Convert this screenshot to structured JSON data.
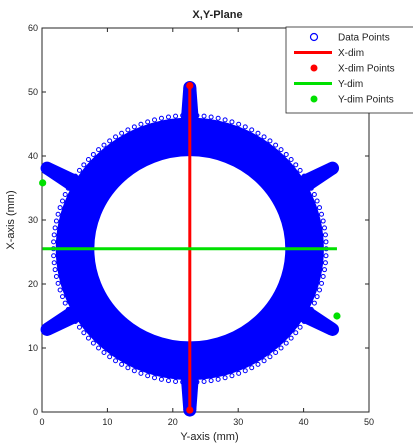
{
  "chart_data": {
    "type": "scatter",
    "title": "X,Y-Plane",
    "xlabel": "Y-axis (mm)",
    "ylabel": "X-axis (mm)",
    "xlim": [
      0,
      50
    ],
    "ylim": [
      0,
      60
    ],
    "xticks": [
      0,
      10,
      20,
      30,
      40,
      50
    ],
    "yticks": [
      0,
      10,
      20,
      30,
      40,
      50,
      60
    ],
    "grid": false,
    "legend_position": "top-right",
    "shape": {
      "description": "gear-shaped ring with six spokes",
      "center": [
        22.6,
        25.5
      ],
      "inner_radius": 14.6,
      "outer_radius": 20.5,
      "spoke_angles_deg": [
        90,
        30,
        -30,
        -90,
        -150,
        150
      ],
      "spoke_tip_radius": 25.2
    },
    "series": [
      {
        "name": "Data Points",
        "marker": "open-circle",
        "color": "#0000ff",
        "description": "dense point cloud filling the gear shape"
      },
      {
        "name": "X-dim",
        "type": "line",
        "color": "#ff0000",
        "x": [
          22.6,
          22.6
        ],
        "y": [
          0.3,
          51.0
        ]
      },
      {
        "name": "X-dim Points",
        "marker": "filled-circle",
        "color": "#ff0000",
        "x": [
          22.6,
          22.6
        ],
        "y": [
          0.3,
          51.0
        ]
      },
      {
        "name": "Y-dim",
        "type": "line",
        "color": "#00e000",
        "x": [
          0.1,
          45.1
        ],
        "y": [
          25.5,
          25.5
        ]
      },
      {
        "name": "Y-dim Points",
        "marker": "filled-circle",
        "color": "#00e000",
        "x": [
          0.1,
          45.1
        ],
        "y": [
          35.8,
          15.0
        ]
      }
    ]
  }
}
